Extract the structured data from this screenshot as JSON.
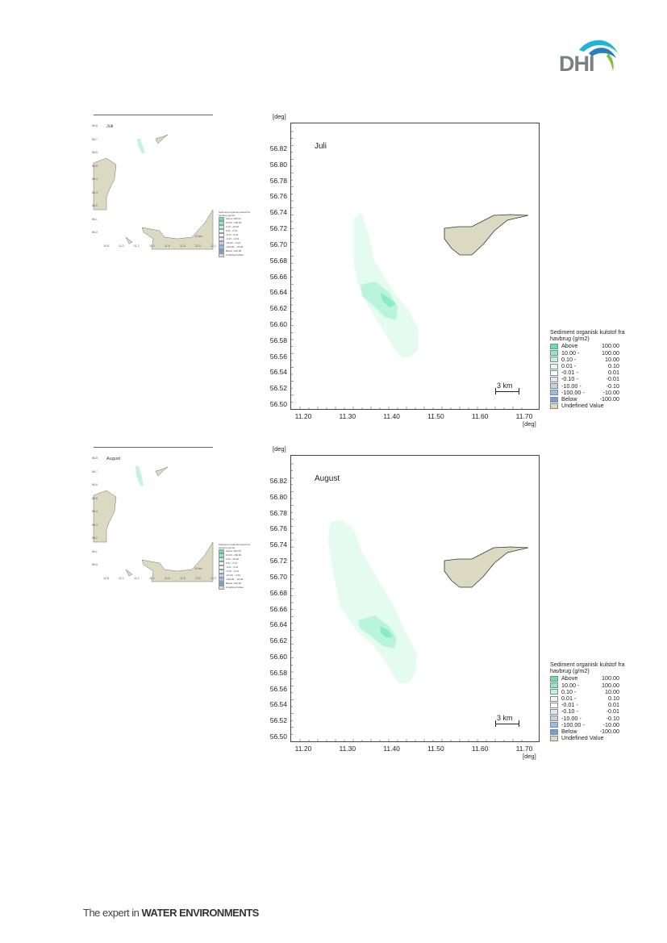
{
  "logo": {
    "text": "DHI",
    "colors": {
      "text": "#7a7f84",
      "wave1": "#1fb6d6",
      "wave2": "#2a7fc1",
      "wave3": "#7dc242"
    }
  },
  "footer": {
    "prefix": "The expert in ",
    "emphasis": "WATER ENVIRONMENTS"
  },
  "maps": [
    {
      "month": "Juli",
      "y_unit": "[deg]",
      "x_unit": "[deg]",
      "y_ticks": [
        "56.82",
        "56.80",
        "56.78",
        "56.76",
        "56.74",
        "56.72",
        "56.70",
        "56.68",
        "56.66",
        "56.64",
        "56.62",
        "56.60",
        "56.58",
        "56.56",
        "56.54",
        "56.52",
        "56.50"
      ],
      "x_ticks": [
        "11.20",
        "11.30",
        "11.40",
        "11.50",
        "11.60",
        "11.70"
      ],
      "scale_label": "3 km",
      "legend": {
        "title": "Sediment organisk kulstof fra havbrug (g/m2)",
        "rows": [
          {
            "from": "Above",
            "to": "100.00",
            "color": "#5fe3a8"
          },
          {
            "from": "10.00 -",
            "to": "100.00",
            "color": "#8aedc2"
          },
          {
            "from": "0.10 -",
            "to": "10.00",
            "color": "#b8f5dc"
          },
          {
            "from": "0.01 -",
            "to": "0.10",
            "color": "#e3fbf0"
          },
          {
            "from": "-0.01 -",
            "to": "0.01",
            "color": "#ffffff"
          },
          {
            "from": "-0.10 -",
            "to": "-0.01",
            "color": "#dde8f6"
          },
          {
            "from": "-10.00 -",
            "to": "-0.10",
            "color": "#bcd2ef"
          },
          {
            "from": "-100.00 -",
            "to": "-10.00",
            "color": "#9cbce8"
          },
          {
            "from": "Below",
            "to": "-100.00",
            "color": "#6e9fe0"
          },
          {
            "from": "Undefined Value",
            "to": "",
            "color": "#dcd9c3"
          }
        ]
      },
      "thumb": {
        "month": "Juli",
        "legend_title": "Sediment organisk kulstof fra havbrug (g/m2)",
        "scale_label": "10 km"
      }
    },
    {
      "month": "August",
      "y_unit": "[deg]",
      "x_unit": "[deg]",
      "y_ticks": [
        "56.82",
        "56.80",
        "56.78",
        "56.76",
        "56.74",
        "56.72",
        "56.70",
        "56.68",
        "56.66",
        "56.64",
        "56.62",
        "56.60",
        "56.58",
        "56.56",
        "56.54",
        "56.52",
        "56.50"
      ],
      "x_ticks": [
        "11.20",
        "11.30",
        "11.40",
        "11.50",
        "11.60",
        "11.70"
      ],
      "scale_label": "3 km",
      "legend": {
        "title": "Sediment organisk kulstof fra havbrug (g/m2)",
        "rows": [
          {
            "from": "Above",
            "to": "100.00",
            "color": "#5fe3a8"
          },
          {
            "from": "10.00 -",
            "to": "100.00",
            "color": "#8aedc2"
          },
          {
            "from": "0.10 -",
            "to": "10.00",
            "color": "#b8f5dc"
          },
          {
            "from": "0.01 -",
            "to": "0.10",
            "color": "#e3fbf0"
          },
          {
            "from": "-0.01 -",
            "to": "0.01",
            "color": "#ffffff"
          },
          {
            "from": "-0.10 -",
            "to": "-0.01",
            "color": "#dde8f6"
          },
          {
            "from": "-10.00 -",
            "to": "-0.10",
            "color": "#bcd2ef"
          },
          {
            "from": "-100.00 -",
            "to": "-10.00",
            "color": "#9cbce8"
          },
          {
            "from": "Below",
            "to": "-100.00",
            "color": "#6e9fe0"
          },
          {
            "from": "Undefined Value",
            "to": "",
            "color": "#dcd9c3"
          }
        ]
      },
      "thumb": {
        "month": "August",
        "legend_title": "Sediment organisk kulstof fra havbrug (g/m2)",
        "scale_label": "10 km"
      }
    }
  ]
}
